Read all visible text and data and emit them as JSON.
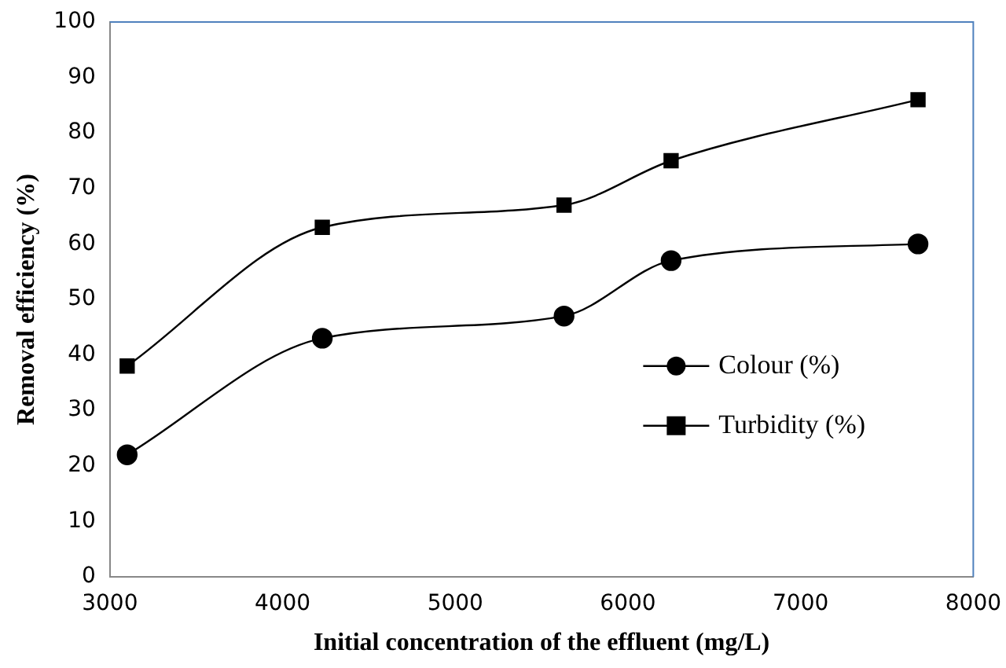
{
  "chart_data": {
    "type": "line",
    "xlabel": "Initial concentration of the effluent (mg/L)",
    "ylabel": "Removal efficiency (%)",
    "x": [
      3100,
      4230,
      5630,
      6250,
      7680
    ],
    "series": [
      {
        "name": "Colour (%)",
        "color": "#000000",
        "marker": "circle",
        "values": [
          22,
          43,
          47,
          57,
          60
        ]
      },
      {
        "name": "Turbidity (%)",
        "color": "#000000",
        "marker": "square",
        "values": [
          38,
          63,
          67,
          75,
          86
        ]
      }
    ],
    "xlim": [
      3000,
      8000
    ],
    "xticks": [
      3000,
      4000,
      5000,
      6000,
      7000,
      8000
    ],
    "ylim": [
      0,
      100
    ],
    "yticks": [
      0,
      10,
      20,
      30,
      40,
      50,
      60,
      70,
      80,
      90,
      100
    ],
    "legend": "right",
    "line_style": "solid"
  }
}
